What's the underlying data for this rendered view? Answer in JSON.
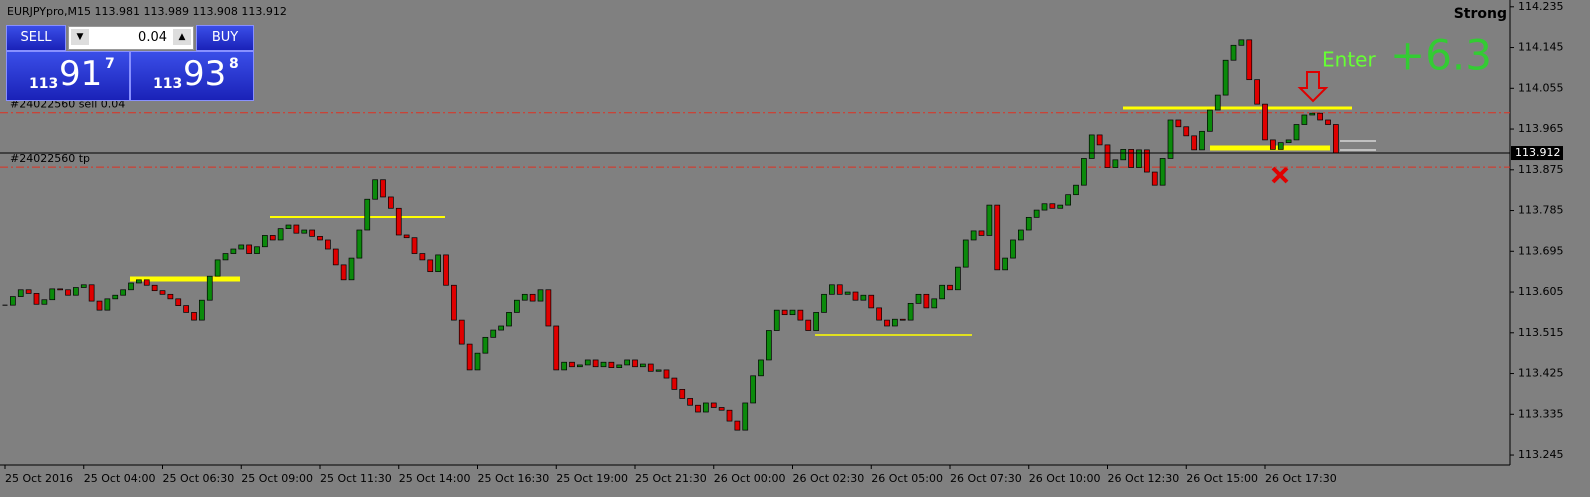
{
  "header": {
    "symbol_info": "EURJPYpro,M15  113.981 113.989 113.908 113.912"
  },
  "trade_panel": {
    "sell": "SELL",
    "buy": "BUY",
    "lot": "0.04",
    "bid_big": "113",
    "bid_main": "91",
    "bid_sup": "7",
    "ask_big": "113",
    "ask_main": "93",
    "ask_sup": "8"
  },
  "annotations": {
    "enter": "Enter",
    "pips": "+6.3",
    "signal": "Strong"
  },
  "chart_data": {
    "type": "candlestick",
    "x_labels": [
      "25 Oct 2016",
      "25 Oct 04:00",
      "25 Oct 06:30",
      "25 Oct 09:00",
      "25 Oct 11:30",
      "25 Oct 14:00",
      "25 Oct 16:30",
      "25 Oct 19:00",
      "25 Oct 21:30",
      "26 Oct 00:00",
      "26 Oct 02:30",
      "26 Oct 05:00",
      "26 Oct 07:30",
      "26 Oct 10:00",
      "26 Oct 12:30",
      "26 Oct 15:00",
      "26 Oct 17:30"
    ],
    "close": [
      113.576,
      113.595,
      113.61,
      113.602,
      113.578,
      113.588,
      113.612,
      113.61,
      113.598,
      113.615,
      113.621,
      113.585,
      113.565,
      113.59,
      113.598,
      113.61,
      113.625,
      113.632,
      113.62,
      113.608,
      113.6,
      113.59,
      113.575,
      113.56,
      113.543,
      113.587,
      113.64,
      113.676,
      113.69,
      113.7,
      113.709,
      113.69,
      113.705,
      113.73,
      113.72,
      113.745,
      113.753,
      113.735,
      113.742,
      113.728,
      113.72,
      113.7,
      113.665,
      113.632,
      113.68,
      113.742,
      113.81,
      113.853,
      113.815,
      113.79,
      113.731,
      113.725,
      113.69,
      113.676,
      113.65,
      113.687,
      113.62,
      113.543,
      113.49,
      113.433,
      113.47,
      113.505,
      113.521,
      113.53,
      113.56,
      113.587,
      113.6,
      113.585,
      113.61,
      113.53,
      113.433,
      113.45,
      113.44,
      113.444,
      113.455,
      113.44,
      113.45,
      113.438,
      113.444,
      113.455,
      113.44,
      113.446,
      113.43,
      113.433,
      113.415,
      113.39,
      113.37,
      113.355,
      113.34,
      113.36,
      113.35,
      113.344,
      113.32,
      113.3,
      113.36,
      113.42,
      113.455,
      113.52,
      113.565,
      113.555,
      113.565,
      113.543,
      113.52,
      113.56,
      113.6,
      113.621,
      113.6,
      113.605,
      113.587,
      113.598,
      113.57,
      113.543,
      113.53,
      113.545,
      113.543,
      113.58,
      113.6,
      113.57,
      113.59,
      113.62,
      113.61,
      113.66,
      113.72,
      113.74,
      113.73,
      113.797,
      113.654,
      113.68,
      113.72,
      113.742,
      113.77,
      113.786,
      113.8,
      113.79,
      113.797,
      113.82,
      113.841,
      113.9,
      113.952,
      113.93,
      113.88,
      113.897,
      113.92,
      113.88,
      113.919,
      113.87,
      113.841,
      113.9,
      113.985,
      113.97,
      113.95,
      113.919,
      113.96,
      114.007,
      114.04,
      114.117,
      114.15,
      114.162,
      114.074,
      114.02,
      113.941,
      113.92,
      113.935,
      113.941,
      113.975,
      113.996,
      114.0,
      113.985,
      113.975,
      113.912
    ],
    "up_color": "#0b8a0b",
    "down_color": "#e00000",
    "ylim": [
      113.223,
      114.25
    ],
    "yticks": [
      114.235,
      114.145,
      114.055,
      113.965,
      113.875,
      113.785,
      113.695,
      113.605,
      113.515,
      113.425,
      113.335,
      113.245
    ],
    "last_price": 113.912,
    "levels": [
      {
        "label": "#24022560 sell 0.04",
        "value": 114.001
      },
      {
        "label": "#24022560 tp",
        "value": 113.881
      }
    ]
  }
}
